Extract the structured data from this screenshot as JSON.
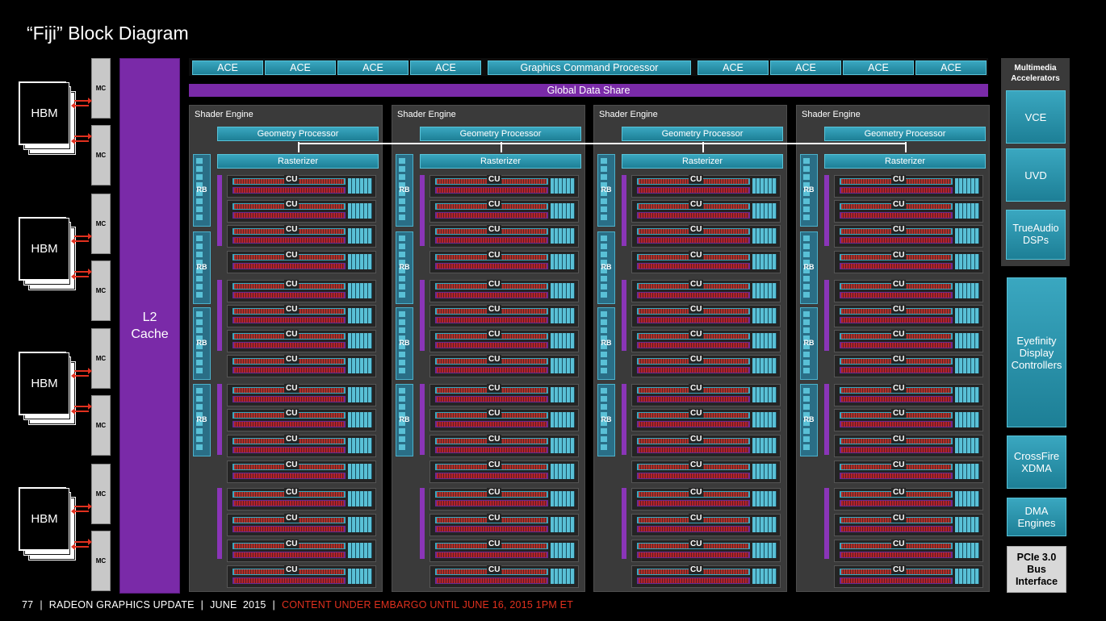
{
  "title": "“Fiji” Block Diagram",
  "footer": {
    "page": "77",
    "section": "RADEON GRAPHICS UPDATE",
    "date": "JUNE  2015",
    "embargo": "CONTENT UNDER EMBARGO UNTIL JUNE 16, 2015 1PM ET"
  },
  "memory": {
    "hbm_label": "HBM",
    "mc_label": "MC"
  },
  "l2": {
    "label": "L2\nCache"
  },
  "top_bar": {
    "ace_label": "ACE",
    "gcp_label": "Graphics Command Processor",
    "gds_label": "Global Data Share"
  },
  "shader_engine": {
    "title": "Shader Engine",
    "geometry_processor": "Geometry Processor",
    "rasterizer": "Rasterizer",
    "rb_label": "RB",
    "cu_label": "CU"
  },
  "multimedia": {
    "title": "Multimedia\nAccelerators",
    "vce": "VCE",
    "uvd": "UVD",
    "trueaudio": "TrueAudio\nDSPs"
  },
  "side_blocks": {
    "eyefinity": "Eyefinity\nDisplay\nControllers",
    "crossfire": "CrossFire\nXDMA",
    "dma": "DMA\nEngines",
    "pcie": "PCIe 3.0\nBus\nInterface"
  }
}
